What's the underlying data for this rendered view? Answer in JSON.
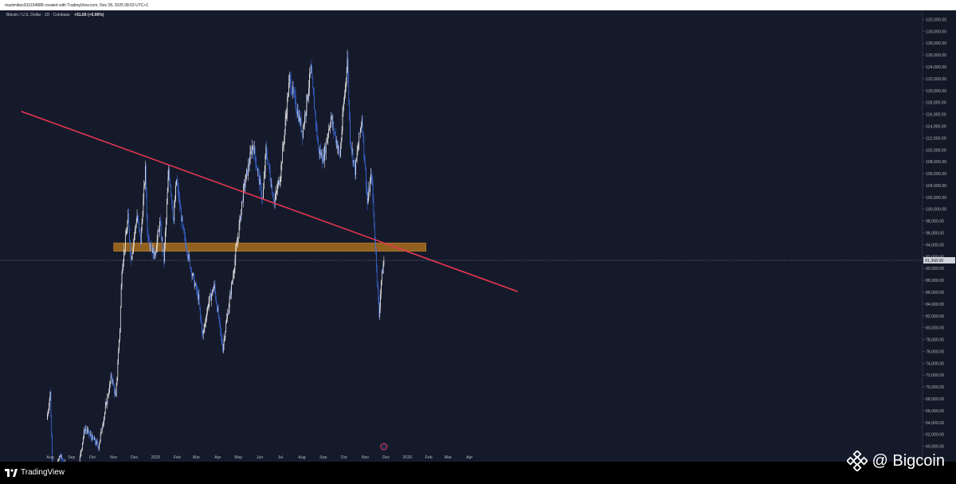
{
  "header": {
    "attribution": "maximilian333154888 created with TradingView.com, Nov 28, 2025 08:03 UTC+1"
  },
  "legend": {
    "symbol": "Bitcoin / U.S. Dollar · 1D · Coinbase",
    "change": "+51.69 (+0.06%)"
  },
  "price_tag": "91,368.99",
  "footer": {
    "brand": "TradingView"
  },
  "watermark": {
    "text": "@ Bigcoin"
  },
  "colors": {
    "background": "#151a2b",
    "candle_up": "#ffffff",
    "candle_down": "#3f6fe8",
    "trendline": "#e8364f",
    "zone": "#b5761e"
  },
  "chart_data": {
    "type": "candlestick",
    "title": "Bitcoin / U.S. Dollar · 1D · Coinbase",
    "x_tick_labels": [
      "Aug",
      "Sep",
      "Oct",
      "Nov",
      "Dec",
      "2025",
      "Feb",
      "Mar",
      "Apr",
      "May",
      "Jun",
      "Jul",
      "Aug",
      "Sep",
      "Oct",
      "Nov",
      "Dec",
      "2026",
      "Feb",
      "Mar",
      "Apr"
    ],
    "y_tick_labels": [
      "132,000.00",
      "130,000.00",
      "128,000.00",
      "126,000.00",
      "124,000.00",
      "122,000.00",
      "120,000.00",
      "118,000.00",
      "116,000.00",
      "114,000.00",
      "112,000.00",
      "110,000.00",
      "108,000.00",
      "106,000.00",
      "104,000.00",
      "102,000.00",
      "100,000.00",
      "98,000.00",
      "96,000.00",
      "94,000.00",
      "92,000.00",
      "90,000.00",
      "88,000.00",
      "86,000.00",
      "84,000.00",
      "82,000.00",
      "80,000.00",
      "78,000.00",
      "76,000.00",
      "74,000.00",
      "72,000.00",
      "70,000.00",
      "68,000.00",
      "66,000.00",
      "64,000.00",
      "62,000.00",
      "60,000.00"
    ],
    "ylim": [
      58600,
      133000
    ],
    "last_price": 91368.99,
    "price_path": [
      [
        "2024-07-27",
        64500
      ],
      [
        "2024-08-01",
        69000
      ],
      [
        "2024-08-05",
        54000
      ],
      [
        "2024-08-15",
        58500
      ],
      [
        "2024-09-06",
        53000
      ],
      [
        "2024-09-20",
        63000
      ],
      [
        "2024-10-10",
        60000
      ],
      [
        "2024-10-29",
        72000
      ],
      [
        "2024-11-04",
        68000
      ],
      [
        "2024-11-10",
        80000
      ],
      [
        "2024-11-13",
        90000
      ],
      [
        "2024-11-22",
        98500
      ],
      [
        "2024-11-26",
        91500
      ],
      [
        "2024-12-05",
        99000
      ],
      [
        "2024-12-10",
        94500
      ],
      [
        "2024-12-17",
        106500
      ],
      [
        "2024-12-20",
        96000
      ],
      [
        "2024-12-30",
        92000
      ],
      [
        "2025-01-07",
        97500
      ],
      [
        "2025-01-13",
        91500
      ],
      [
        "2025-01-20",
        107000
      ],
      [
        "2025-01-27",
        98000
      ],
      [
        "2025-01-31",
        105000
      ],
      [
        "2025-02-10",
        96000
      ],
      [
        "2025-02-25",
        88000
      ],
      [
        "2025-03-04",
        85000
      ],
      [
        "2025-03-10",
        78500
      ],
      [
        "2025-03-18",
        84000
      ],
      [
        "2025-03-27",
        87000
      ],
      [
        "2025-04-08",
        76500
      ],
      [
        "2025-04-21",
        87000
      ],
      [
        "2025-05-01",
        96000
      ],
      [
        "2025-05-08",
        103000
      ],
      [
        "2025-05-22",
        111000
      ],
      [
        "2025-06-05",
        101500
      ],
      [
        "2025-06-10",
        110000
      ],
      [
        "2025-06-22",
        101000
      ],
      [
        "2025-07-01",
        106000
      ],
      [
        "2025-07-14",
        122000
      ],
      [
        "2025-08-02",
        113000
      ],
      [
        "2025-08-14",
        123500
      ],
      [
        "2025-08-25",
        110000
      ],
      [
        "2025-09-01",
        108500
      ],
      [
        "2025-09-12",
        115500
      ],
      [
        "2025-09-25",
        109000
      ],
      [
        "2025-10-06",
        125500
      ],
      [
        "2025-10-10",
        112000
      ],
      [
        "2025-10-17",
        106500
      ],
      [
        "2025-10-27",
        115500
      ],
      [
        "2025-11-04",
        101000
      ],
      [
        "2025-11-10",
        106000
      ],
      [
        "2025-11-21",
        82000
      ],
      [
        "2025-11-24",
        88000
      ],
      [
        "2025-11-28",
        91368.99
      ]
    ],
    "trendline": [
      [
        "2024-06-20",
        116500
      ],
      [
        "2026-06-10",
        86100
      ]
    ],
    "support_zone": {
      "x_range": [
        "2024-11-01",
        "2026-01-28"
      ],
      "y_range": [
        92900,
        94300
      ]
    }
  }
}
